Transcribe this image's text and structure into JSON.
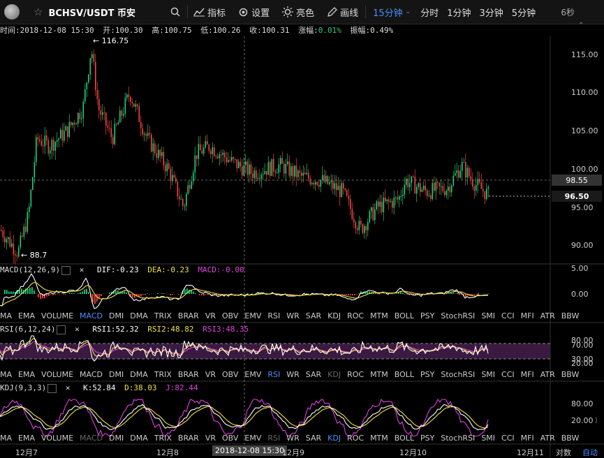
{
  "header": {
    "symbol": "BCHSV/USDT 币安",
    "indicator_label": "指标",
    "settings_label": "设置",
    "theme_label": "亮色",
    "draw_label": "画线",
    "interval_selected": "15分钟",
    "intervals": [
      "分时",
      "1分钟",
      "3分钟",
      "5分钟"
    ],
    "refresh": "6秒"
  },
  "info": {
    "time": "时间:2018-12-08 15:30",
    "open": "开:100.30",
    "high": "高:100.75",
    "low": "低:100.26",
    "close": "收:100.31",
    "change_label": "涨幅:",
    "change_value": "0.01%",
    "amplitude": "振幅:0.49%"
  },
  "main_chart": {
    "max_label": "116.75",
    "min_label": "88.7",
    "y_ticks": [
      "115.00",
      "110.00",
      "105.00",
      "100.00",
      "95.00",
      "90.00"
    ],
    "current_price": "96.50",
    "crosshair_price": "98.55"
  },
  "macd": {
    "title": "MACD(12,26,9)",
    "dif": "DIF:-0.23",
    "dea": "DEA:-0.23",
    "macd": "MACD:-0.00",
    "y_ticks": [
      "5.00",
      "0.00"
    ]
  },
  "rsi": {
    "title": "RSI(6,12,24)",
    "rsi1": "RSI1:52.32",
    "rsi2": "RSI2:48.82",
    "rsi3": "RSI3:48.35",
    "y_ticks": [
      "80.00",
      "70.00",
      "30.00",
      "20.00"
    ]
  },
  "kdj": {
    "title": "KDJ(9,3,3)",
    "k": "K:52.84",
    "d": "D:38.03",
    "j": "J:82.44",
    "y_ticks": [
      "80.00",
      "20.00"
    ]
  },
  "indicators": [
    "MA",
    "EMA",
    "VOLUME",
    "MACD",
    "DMI",
    "DMA",
    "TRIX",
    "BRAR",
    "VR",
    "OBV",
    "EMV",
    "RSI",
    "WR",
    "SAR",
    "KDJ",
    "ROC",
    "MTM",
    "BOLL",
    "PSY",
    "StochRSI",
    "SMI",
    "CCI",
    "MFI",
    "ATR",
    "BBW"
  ],
  "x_axis": {
    "labels": [
      "12月7",
      "12月8",
      "12月9",
      "12月10",
      "12月11"
    ],
    "crosshair_time": "2018-12-08 15:30",
    "log_label": "对数",
    "auto_label": "自动"
  },
  "colors": {
    "up": "#21d07a",
    "down": "#f0483e",
    "macd_dif": "#ffffff",
    "macd_dea": "#f0e040",
    "magenta": "#e040e0",
    "link": "#4a90ff"
  }
}
